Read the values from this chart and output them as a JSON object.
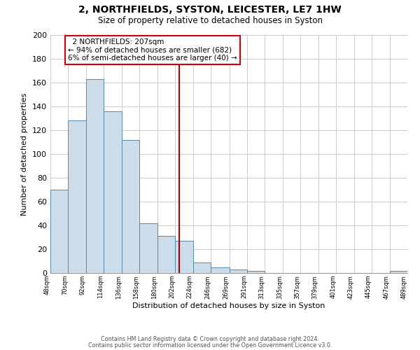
{
  "title": "2, NORTHFIELDS, SYSTON, LEICESTER, LE7 1HW",
  "subtitle": "Size of property relative to detached houses in Syston",
  "xlabel": "Distribution of detached houses by size in Syston",
  "ylabel": "Number of detached properties",
  "bar_color": "#ccdce8",
  "bar_edge_color": "#5588aa",
  "bins": [
    48,
    70,
    92,
    114,
    136,
    158,
    180,
    202,
    224,
    246,
    269,
    291,
    313,
    335,
    357,
    379,
    401,
    423,
    445,
    467,
    489
  ],
  "counts": [
    70,
    128,
    163,
    136,
    112,
    42,
    31,
    27,
    9,
    5,
    3,
    2,
    0,
    0,
    0,
    0,
    0,
    0,
    0,
    2
  ],
  "tick_labels": [
    "48sqm",
    "70sqm",
    "92sqm",
    "114sqm",
    "136sqm",
    "158sqm",
    "180sqm",
    "202sqm",
    "224sqm",
    "246sqm",
    "269sqm",
    "291sqm",
    "313sqm",
    "335sqm",
    "357sqm",
    "379sqm",
    "401sqm",
    "423sqm",
    "445sqm",
    "467sqm",
    "489sqm"
  ],
  "property_size": 207,
  "vline_color": "#aa0000",
  "annotation_title": "2 NORTHFIELDS: 207sqm",
  "annotation_line1": "← 94% of detached houses are smaller (682)",
  "annotation_line2": "6% of semi-detached houses are larger (40) →",
  "annotation_box_color": "#ffffff",
  "annotation_box_edge": "#cc0000",
  "ylim": [
    0,
    200
  ],
  "yticks": [
    0,
    20,
    40,
    60,
    80,
    100,
    120,
    140,
    160,
    180,
    200
  ],
  "footer1": "Contains HM Land Registry data © Crown copyright and database right 2024.",
  "footer2": "Contains public sector information licensed under the Open Government Licence v3.0."
}
